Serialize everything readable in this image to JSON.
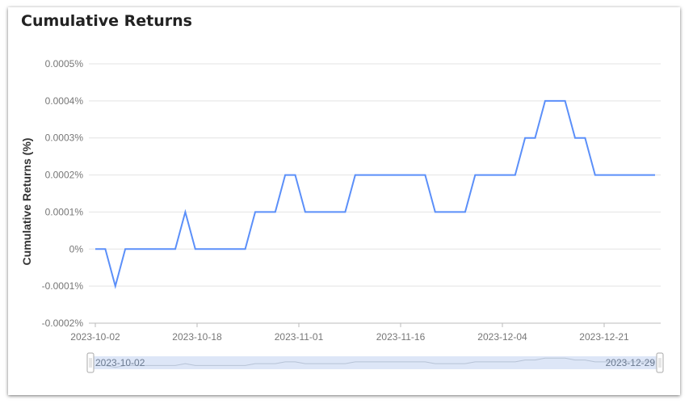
{
  "chart_data": {
    "type": "line",
    "title": "Cumulative Returns",
    "xlabel": "",
    "ylabel": "Cumulative Returns (%)",
    "ylim": [
      -0.0002,
      0.0005
    ],
    "y_ticks": [
      "-0.0002%",
      "-0.0001%",
      "0%",
      "0.0001%",
      "0.0002%",
      "0.0003%",
      "0.0004%",
      "0.0005%"
    ],
    "x_ticks": [
      "2023-10-02",
      "2023-10-18",
      "2023-11-01",
      "2023-11-16",
      "2023-12-04",
      "2023-12-21"
    ],
    "grid": true,
    "color": "#5b8ff9",
    "series": [
      {
        "values": [
          0,
          0,
          -0.0001,
          0,
          0,
          0,
          0,
          0,
          0,
          0.0001,
          0,
          0,
          0,
          0,
          0,
          0,
          0.0001,
          0.0001,
          0.0001,
          0.0002,
          0.0002,
          0.0001,
          0.0001,
          0.0001,
          0.0001,
          0.0001,
          0.0002,
          0.0002,
          0.0002,
          0.0002,
          0.0002,
          0.0002,
          0.0002,
          0.0002,
          0.0001,
          0.0001,
          0.0001,
          0.0001,
          0.0002,
          0.0002,
          0.0002,
          0.0002,
          0.0002,
          0.0003,
          0.0003,
          0.0004,
          0.0004,
          0.0004,
          0.0003,
          0.0003,
          0.0002,
          0.0002,
          0.0002,
          0.0002,
          0.0002,
          0.0002,
          0.0002
        ]
      }
    ]
  },
  "zoom": {
    "start_label": "2023-10-02",
    "end_label": "2023-12-29"
  }
}
